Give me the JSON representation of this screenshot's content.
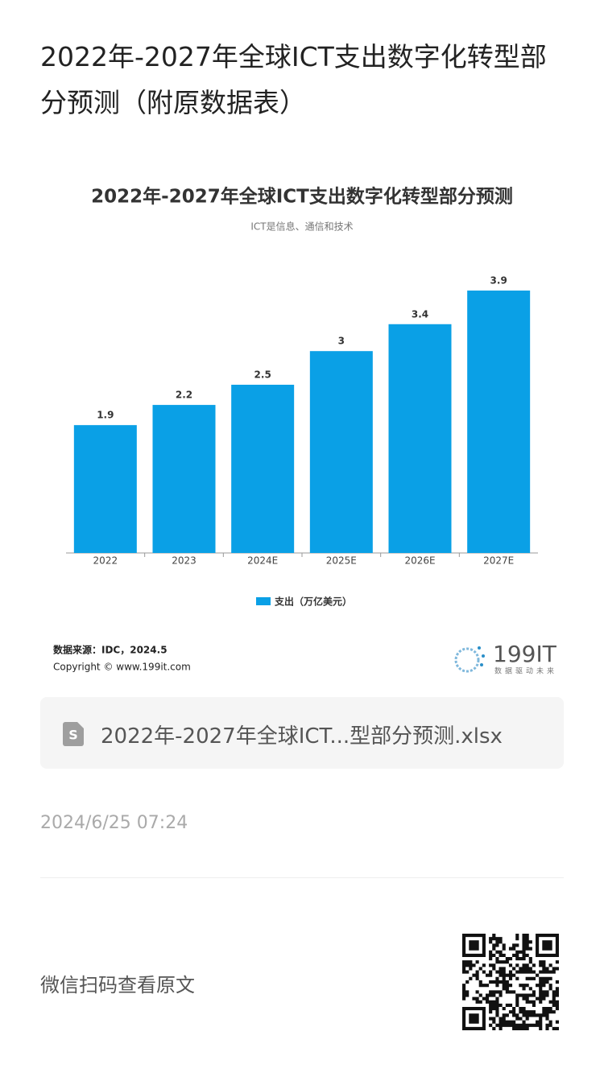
{
  "header": {
    "title": "2022年-2027年全球ICT支出数字化转型部分预测（附原数据表）"
  },
  "chart_data": {
    "type": "bar",
    "title": "2022年-2027年全球ICT支出数字化转型部分预测",
    "subtitle": "ICT是信息、通信和技术",
    "categories": [
      "2022",
      "2023",
      "2024E",
      "2025E",
      "2026E",
      "2027E"
    ],
    "series": [
      {
        "name": "支出（万亿美元）",
        "color": "#0aa0e6",
        "values": [
          1.9,
          2.2,
          2.5,
          3,
          3.4,
          3.9
        ]
      }
    ],
    "legend": "bottom",
    "source": "数据来源：IDC，2024.5",
    "copyright": "Copyright © www.199it.com",
    "logo": "199IT",
    "logo_slogan": "数据驱动未来"
  },
  "attachment": {
    "filename": "2022年-2027年全球ICT...型部分预测.xlsx"
  },
  "date": "2024/6/25 07:24",
  "footer": {
    "text": "微信扫码查看原文"
  }
}
